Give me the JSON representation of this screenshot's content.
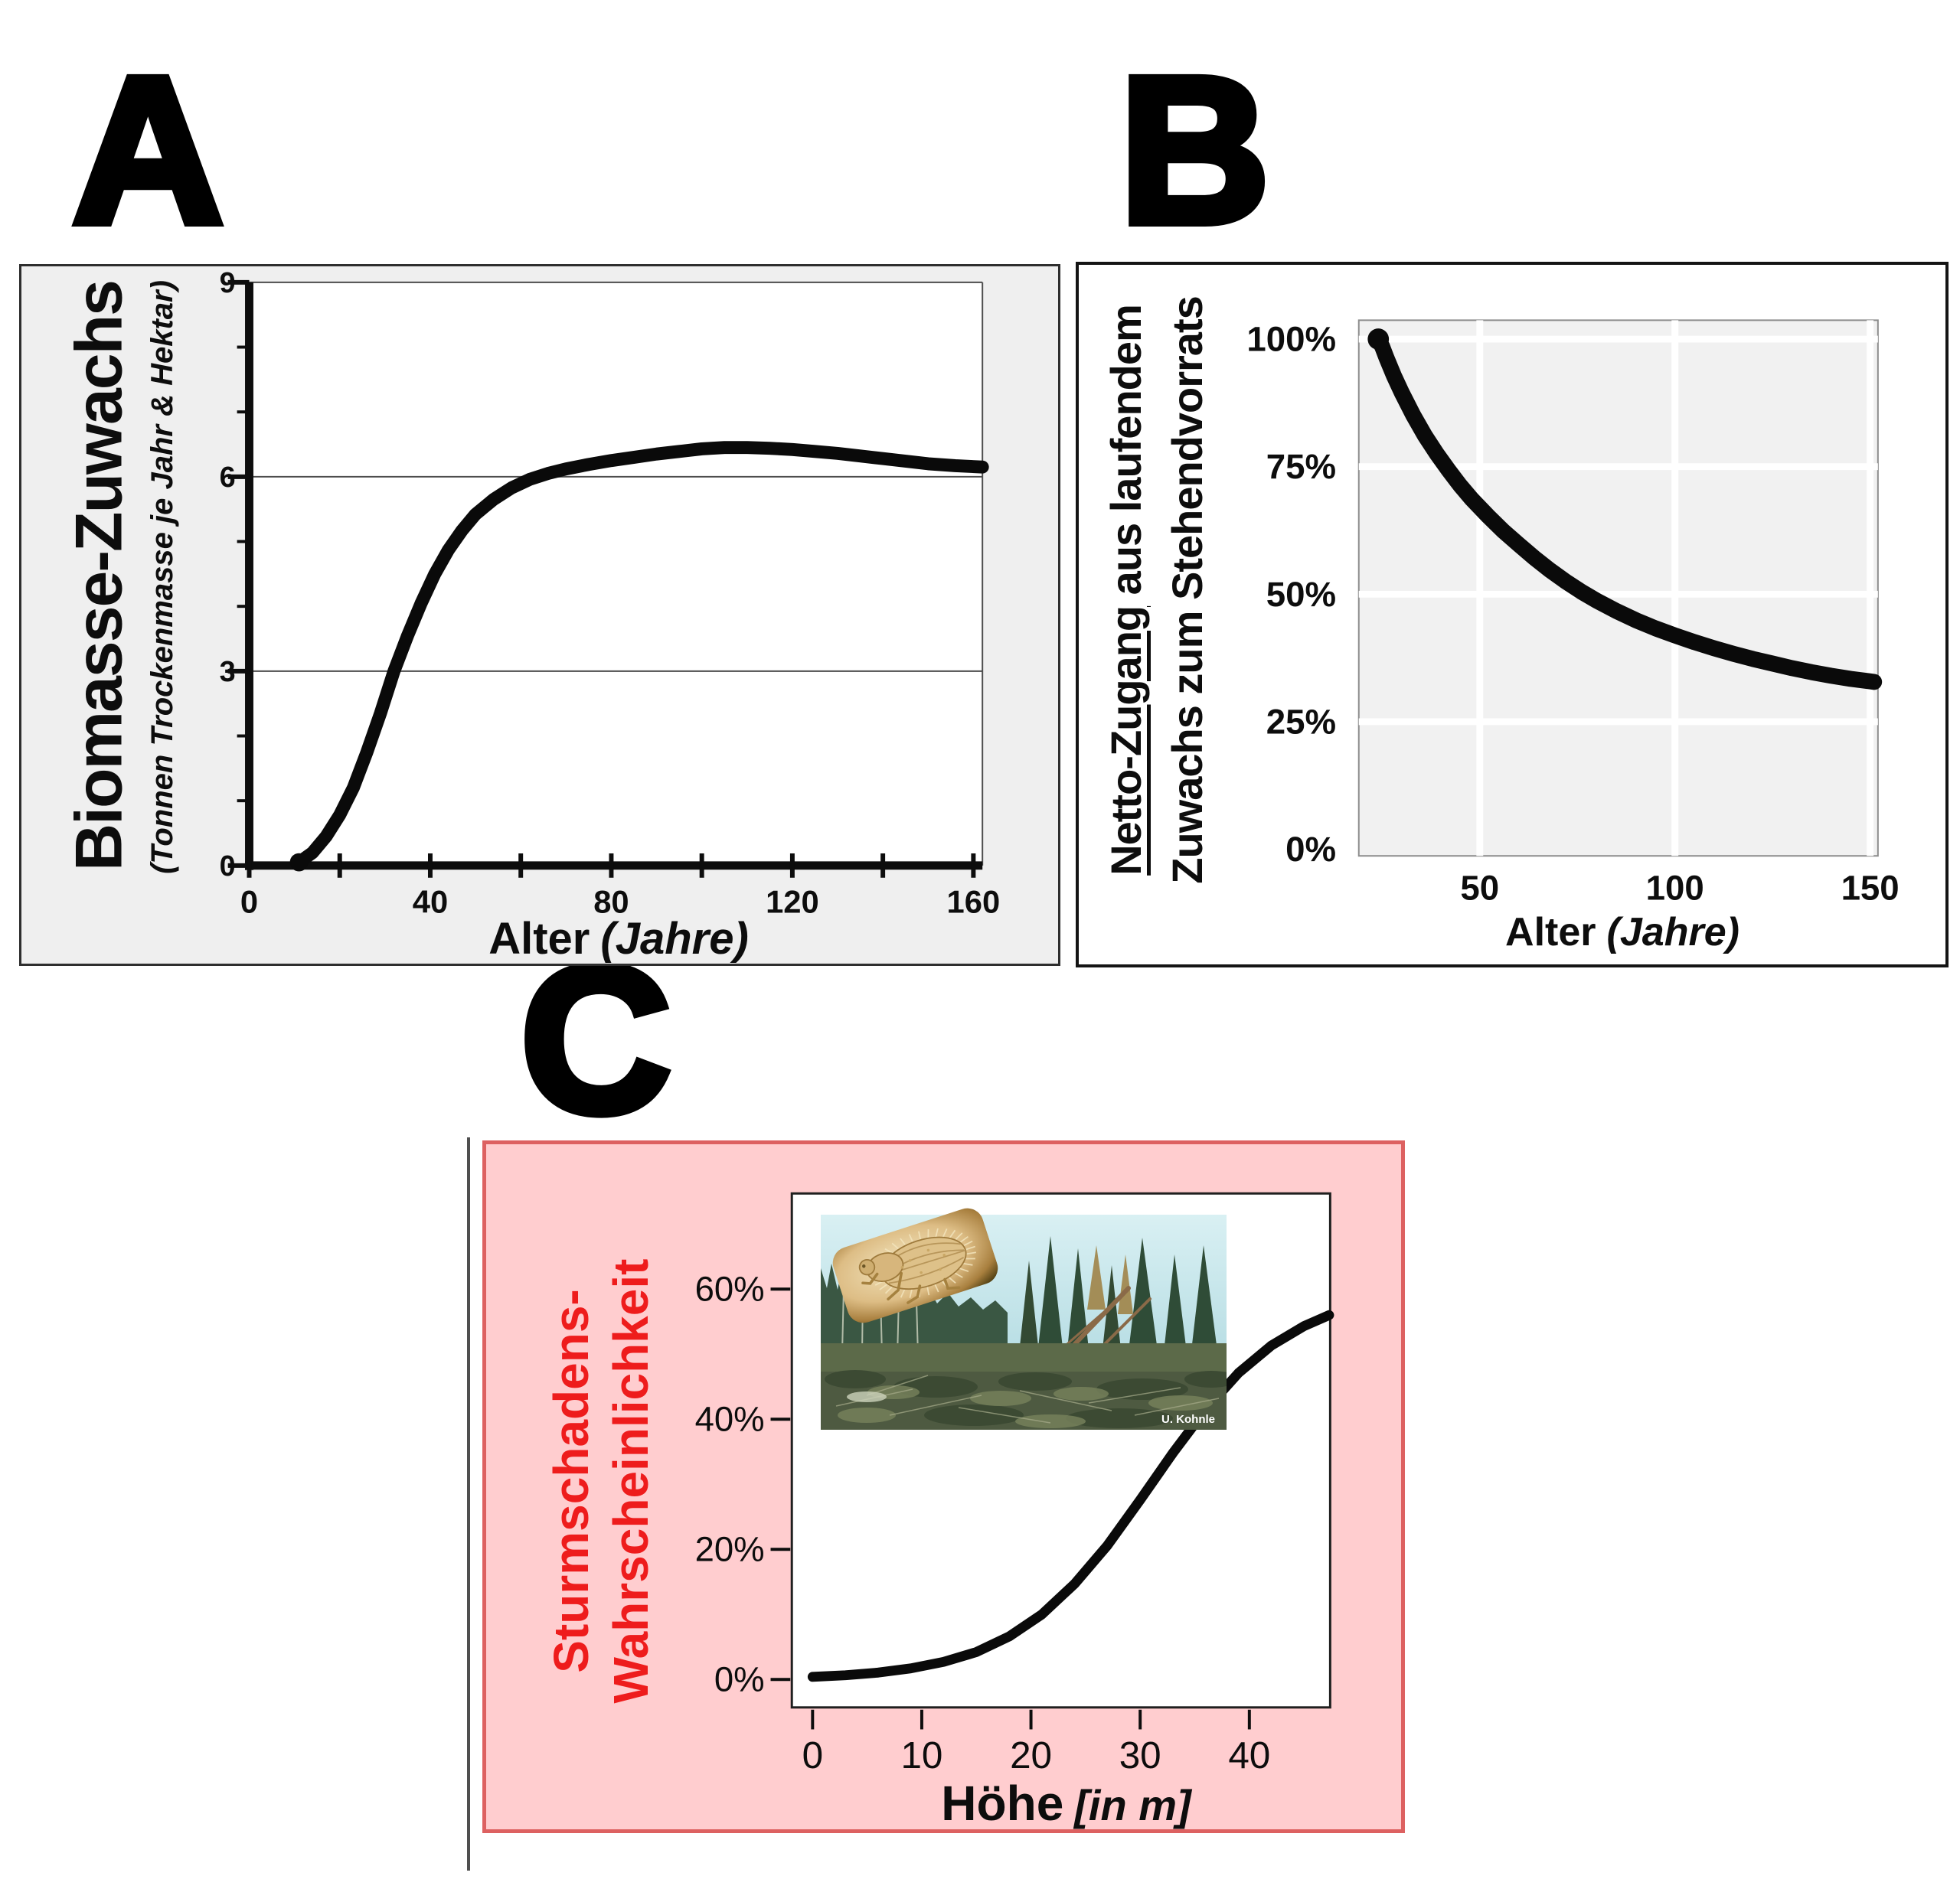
{
  "panels": {
    "a": {
      "label": "A",
      "y_axis_title": "Biomasse-Zuwachs",
      "y_axis_subtitle": "(Tonnen Trockenmasse je Jahr & Hektar)",
      "x_axis_title": "Alter",
      "x_axis_unit": "(Jahre)"
    },
    "b": {
      "label": "B",
      "y_axis_title_underlined": "Netto-Zugang",
      "y_axis_title_line1_rest": " aus laufendem",
      "y_axis_title_line2": "Zuwachs zum Stehendvorrats",
      "x_axis_title": "Alter",
      "x_axis_unit": "(Jahre)"
    },
    "c": {
      "label": "C",
      "y_axis_title_line1": "Sturmschadens-",
      "y_axis_title_line2": "Wahrscheinlichkeit",
      "x_axis_title": "Höhe",
      "x_axis_unit": "[in m]",
      "photo_credit": "U. Kohnle",
      "accent_color": "#ee1c1c",
      "panel_bg": "#ffcdcf"
    }
  },
  "chart_data": [
    {
      "id": "chart-a",
      "type": "line",
      "title": "A",
      "xlabel": "Alter (Jahre)",
      "ylabel": "Biomasse-Zuwachs (Tonnen Trockenmasse je Jahr & Hektar)",
      "xlim": [
        0,
        162
      ],
      "ylim": [
        0,
        9
      ],
      "x_major_ticks": {
        "values": [
          0,
          40,
          80,
          120,
          160
        ],
        "labels": [
          "0",
          "40",
          "80",
          "120",
          "160"
        ]
      },
      "x_minor_ticks": [
        20,
        60,
        100,
        140
      ],
      "y_major_ticks": {
        "values": [
          0,
          3,
          6,
          9
        ],
        "labels": [
          "0",
          "3",
          "6",
          "9"
        ]
      },
      "y_minor_ticks": [
        1,
        2,
        4,
        5,
        7,
        8
      ],
      "gridlines_y": [
        3,
        6,
        9
      ],
      "legend": "none",
      "curve_color": "#0a0a0a",
      "series": [
        {
          "name": "Biomasse-Zuwachs",
          "x": [
            11,
            14,
            17,
            20,
            23,
            26,
            29,
            32,
            35,
            38,
            41,
            44,
            47,
            50,
            54,
            58,
            62,
            66,
            70,
            75,
            80,
            85,
            90,
            95,
            100,
            105,
            110,
            115,
            120,
            125,
            130,
            135,
            140,
            145,
            150,
            156,
            162
          ],
          "y": [
            0.05,
            0.2,
            0.45,
            0.78,
            1.2,
            1.75,
            2.35,
            3.0,
            3.55,
            4.05,
            4.5,
            4.87,
            5.17,
            5.42,
            5.65,
            5.83,
            5.96,
            6.05,
            6.12,
            6.19,
            6.25,
            6.3,
            6.35,
            6.39,
            6.43,
            6.45,
            6.45,
            6.44,
            6.42,
            6.39,
            6.36,
            6.32,
            6.28,
            6.24,
            6.2,
            6.17,
            6.15
          ]
        }
      ]
    },
    {
      "id": "chart-b",
      "type": "line",
      "title": "B",
      "xlabel": "Alter (Jahre)",
      "ylabel": "Netto-Zugang aus laufendem Zuwachs zum Stehendvorrats",
      "xlim": [
        19,
        152
      ],
      "ylim": [
        -1.3,
        103.7
      ],
      "x_major_ticks": {
        "values": [
          50,
          100,
          150
        ],
        "labels": [
          "50",
          "100",
          "150"
        ]
      },
      "y_major_ticks": {
        "values": [
          0,
          25,
          50,
          75,
          100
        ],
        "labels": [
          "0%",
          "25%",
          "50%",
          "75%",
          "100%"
        ]
      },
      "gridlines_x": [
        50,
        100,
        150
      ],
      "gridlines_y": [
        25,
        50,
        75,
        100
      ],
      "plot_bg": "#f1f1f1",
      "grid_color": "#ffffff",
      "legend": "none",
      "curve_color": "#0a0a0a",
      "series": [
        {
          "name": "Netto-Zugang / Zuwachs",
          "x": [
            24,
            25,
            26,
            28,
            30,
            33,
            36,
            39,
            42,
            45,
            48,
            52,
            56,
            60,
            64,
            68,
            72,
            76,
            80,
            85,
            90,
            95,
            100,
            105,
            110,
            115,
            120,
            125,
            130,
            135,
            140,
            145,
            150,
            151
          ],
          "y": [
            100,
            98.5,
            96.5,
            92.8,
            89.5,
            85,
            81,
            77.5,
            74.3,
            71.3,
            68.6,
            65.4,
            62.4,
            59.7,
            57.1,
            54.7,
            52.5,
            50.5,
            48.7,
            46.7,
            44.9,
            43.3,
            41.9,
            40.6,
            39.4,
            38.3,
            37.3,
            36.4,
            35.5,
            34.7,
            34.0,
            33.4,
            32.9,
            32.8
          ]
        }
      ]
    },
    {
      "id": "chart-c",
      "type": "line",
      "title": "C",
      "xlabel": "Höhe [in m]",
      "ylabel": "Sturmschadens-Wahrscheinlichkeit",
      "xlim": [
        -1.9,
        47.4
      ],
      "ylim": [
        -4.3,
        74.7
      ],
      "x_major_ticks": {
        "values": [
          0,
          10,
          20,
          30,
          40
        ],
        "labels": [
          "0",
          "10",
          "20",
          "30",
          "40"
        ]
      },
      "y_major_ticks": {
        "values": [
          0,
          20,
          40,
          60
        ],
        "labels": [
          "0%",
          "20%",
          "40%",
          "60%"
        ]
      },
      "legend": "none",
      "curve_color": "#0a0a0a",
      "series": [
        {
          "name": "Sturmschadens-Wahrscheinlichkeit",
          "x": [
            0,
            3,
            6,
            9,
            12,
            15,
            18,
            21,
            24,
            27,
            30,
            33,
            36,
            39,
            42,
            45,
            47.3
          ],
          "y": [
            0.4,
            0.65,
            1.05,
            1.7,
            2.7,
            4.2,
            6.6,
            10.0,
            14.7,
            20.6,
            27.6,
            34.8,
            41.5,
            47.1,
            51.3,
            54.3,
            56.0
          ]
        }
      ]
    }
  ]
}
